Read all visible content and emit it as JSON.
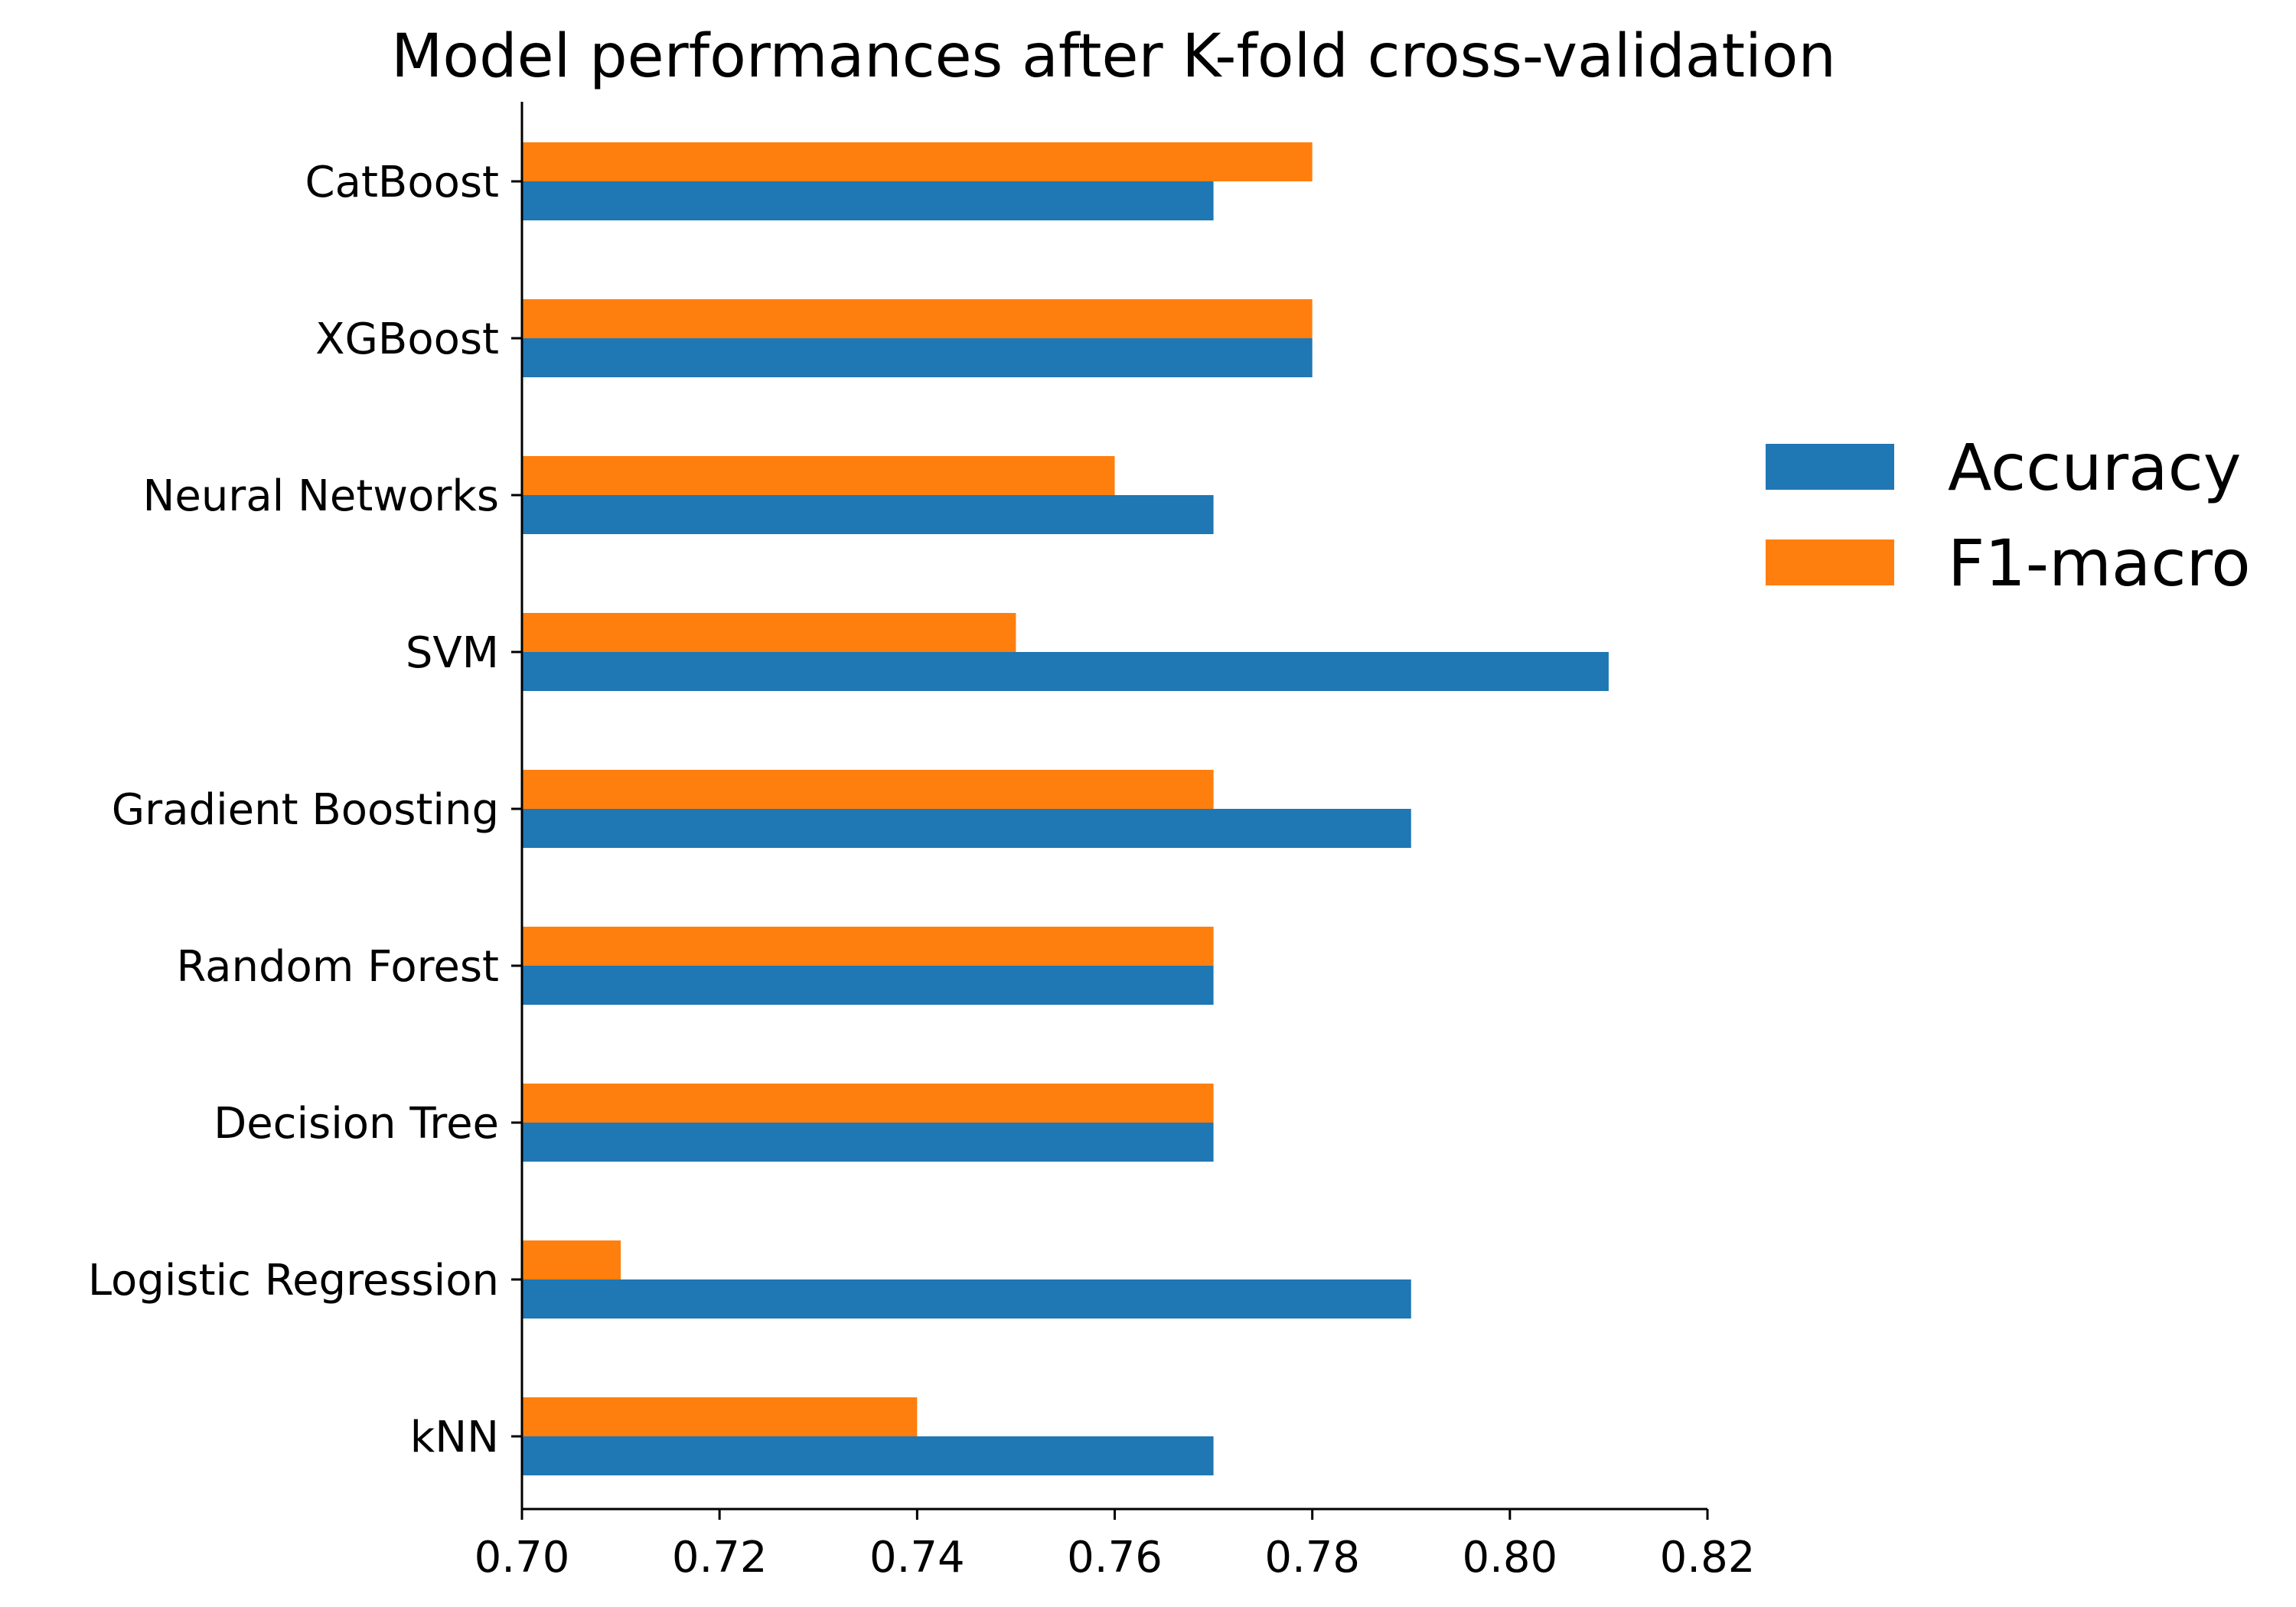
{
  "chart_data": {
    "type": "bar",
    "orientation": "horizontal",
    "title": "Model performances after K-fold cross-validation",
    "xlabel": "",
    "ylabel": "",
    "categories": [
      "kNN",
      "Logistic Regression",
      "Decision Tree",
      "Random Forest",
      "Gradient Boosting",
      "SVM",
      "Neural Networks",
      "XGBoost",
      "CatBoost"
    ],
    "series": [
      {
        "name": "Accuracy",
        "color": "#1f77b4",
        "values": [
          0.77,
          0.79,
          0.77,
          0.77,
          0.79,
          0.81,
          0.77,
          0.78,
          0.77
        ]
      },
      {
        "name": "F1-macro",
        "color": "#ff7f0e",
        "values": [
          0.74,
          0.71,
          0.77,
          0.77,
          0.77,
          0.75,
          0.76,
          0.78,
          0.78
        ]
      }
    ],
    "xlim": [
      0.7,
      0.82
    ],
    "xticks": [
      "0.70",
      "0.72",
      "0.74",
      "0.76",
      "0.78",
      "0.80",
      "0.82"
    ],
    "grid": false,
    "legend_position": "right"
  }
}
